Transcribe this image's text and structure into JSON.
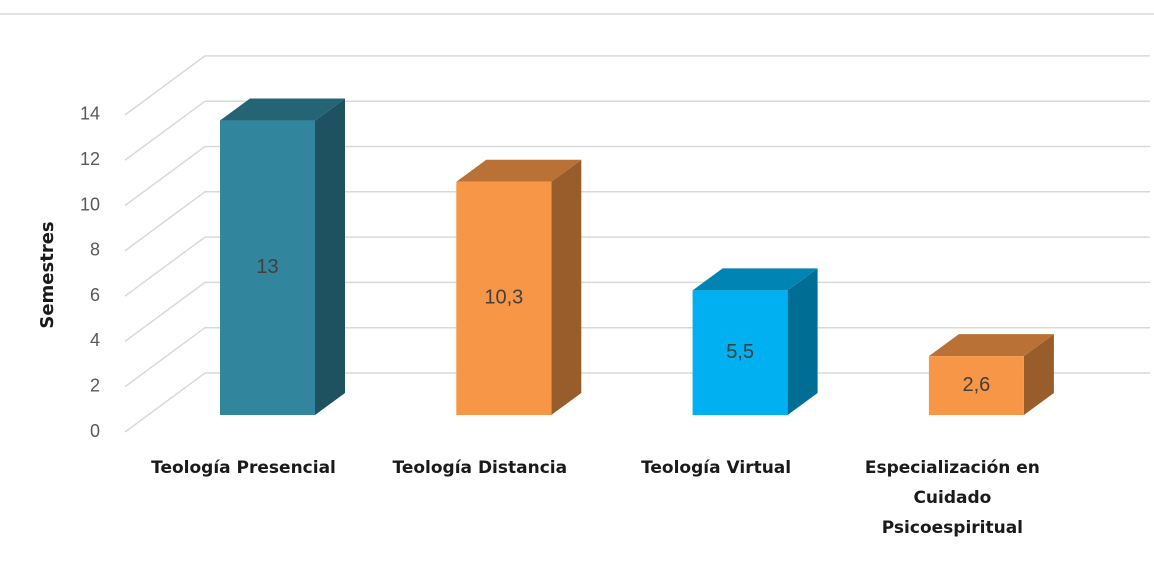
{
  "chart_data": {
    "type": "bar3d",
    "ylabel": "Semestres",
    "categories": [
      "Teología Presencial",
      "Teología Distancia",
      "Teología Virtual",
      "Especialización en Cuidado Psicoespiritual"
    ],
    "values": [
      13,
      10.3,
      5.5,
      2.6
    ],
    "value_labels": [
      "13",
      "10,3",
      "5,5",
      "2,6"
    ],
    "colors": [
      "#31859c",
      "#f79646",
      "#00b0f0",
      "#f79646"
    ],
    "ylim": [
      0,
      14
    ],
    "yticks": [
      0,
      2,
      4,
      6,
      8,
      10,
      12,
      14
    ],
    "grid": true
  }
}
